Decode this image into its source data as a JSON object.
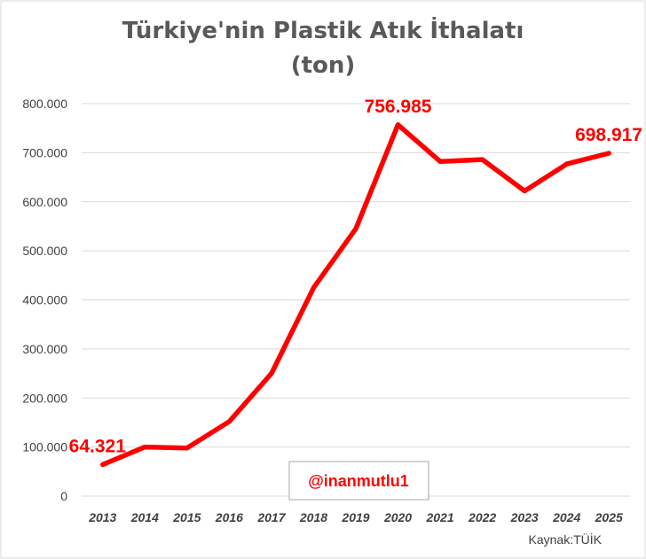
{
  "chart_data": {
    "type": "line",
    "title": "Türkiye'nin Plastik Atık İthalatı",
    "subtitle": "(ton)",
    "xlabel": "",
    "ylabel": "",
    "categories": [
      "2013",
      "2014",
      "2015",
      "2016",
      "2017",
      "2018",
      "2019",
      "2020",
      "2021",
      "2022",
      "2023",
      "2024",
      "2025"
    ],
    "series": [
      {
        "values": [
          64321,
          100000,
          98000,
          152000,
          250000,
          425000,
          545000,
          756985,
          682000,
          686000,
          622000,
          677000,
          698917
        ]
      }
    ],
    "ylim": [
      0,
      800000
    ],
    "yticks": [
      0,
      100000,
      200000,
      300000,
      400000,
      500000,
      600000,
      700000,
      800000
    ],
    "ytick_labels": [
      "0",
      "100.000",
      "200.000",
      "300.000",
      "400.000",
      "500.000",
      "600.000",
      "700.000",
      "800.000"
    ],
    "data_labels": [
      {
        "index": 0,
        "text": "64.321"
      },
      {
        "index": 7,
        "text": "756.985"
      },
      {
        "index": 12,
        "text": "698.917"
      }
    ],
    "grid": true,
    "line_color": "#ff0000",
    "grid_color": "#d9d9d9"
  },
  "watermark": "@inanmutlu1",
  "source": "Kaynak:TÜİK"
}
